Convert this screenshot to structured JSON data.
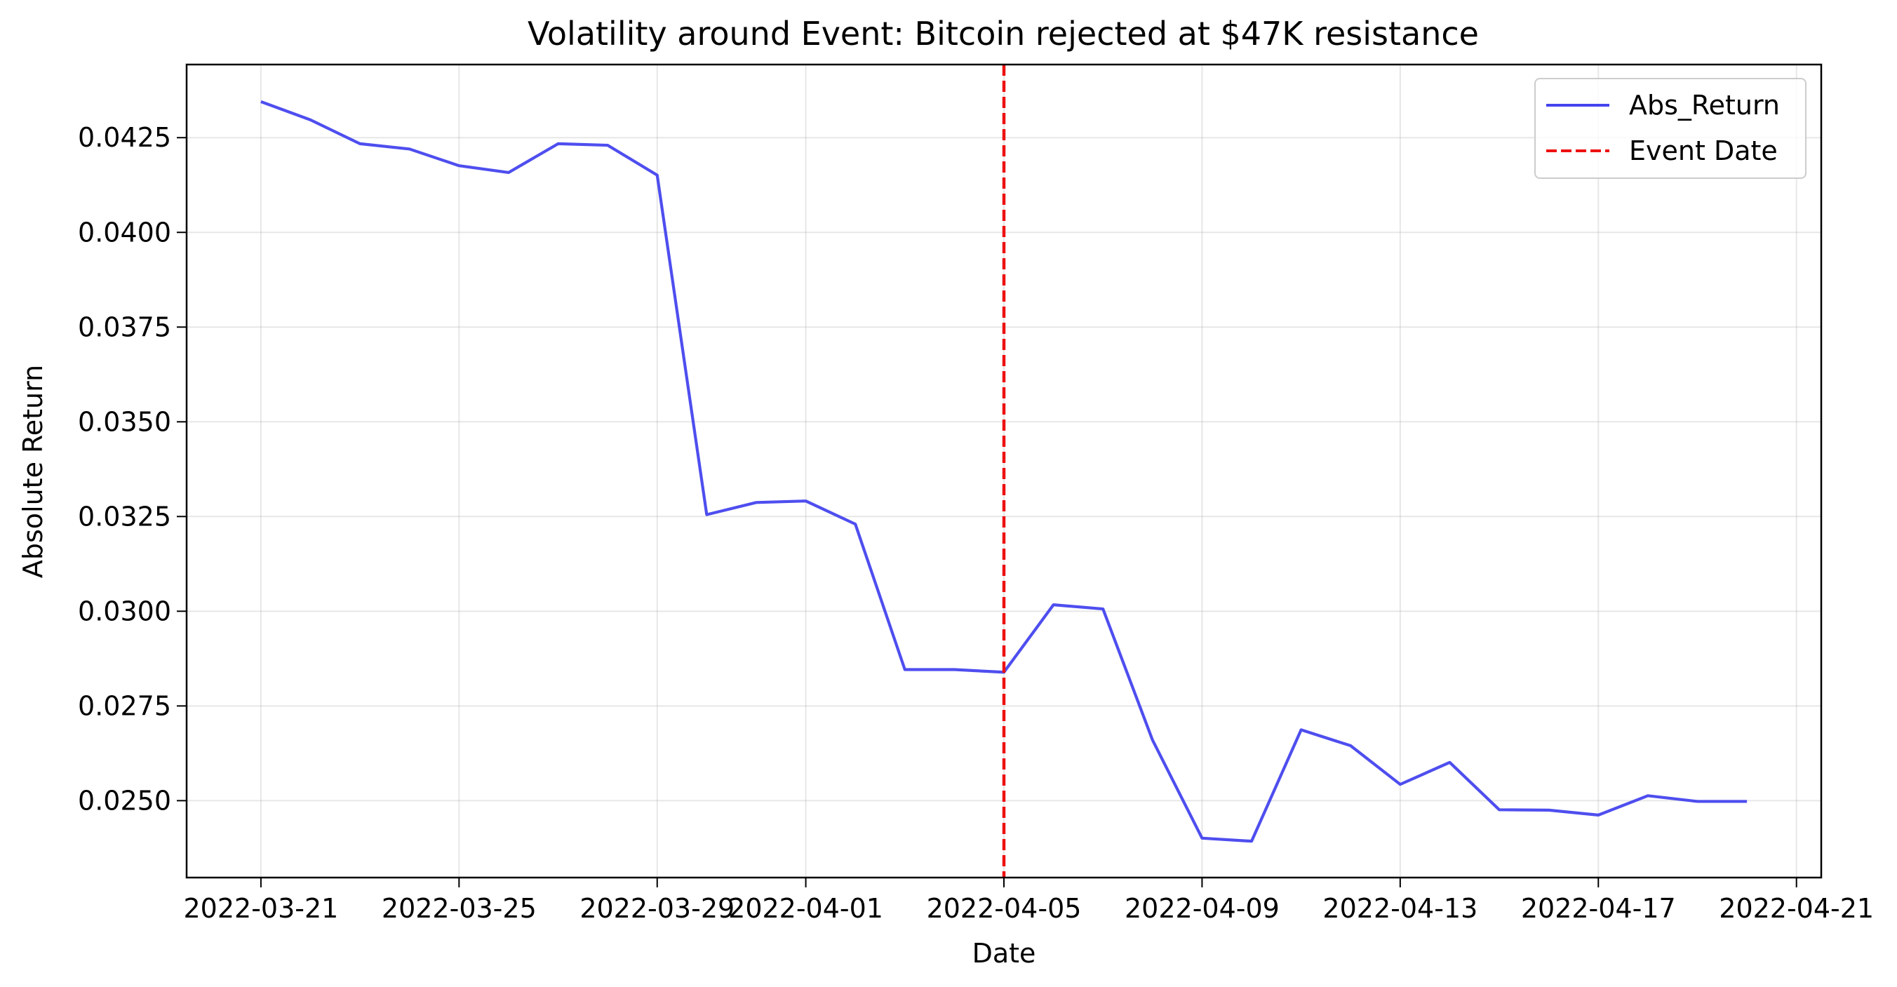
{
  "chart_data": {
    "type": "line",
    "title": "Volatility around Event: Bitcoin rejected at $47K resistance",
    "xlabel": "Date",
    "ylabel": "Absolute Return",
    "xlim": [
      "2022-03-19 12:00",
      "2022-04-21 12:00"
    ],
    "ylim": [
      0.02297,
      0.04443
    ],
    "x_ticks": [
      "2022-03-21",
      "2022-03-25",
      "2022-03-29",
      "2022-04-01",
      "2022-04-05",
      "2022-04-09",
      "2022-04-13",
      "2022-04-17",
      "2022-04-21"
    ],
    "y_ticks": [
      "0.0250",
      "0.0275",
      "0.0300",
      "0.0325",
      "0.0350",
      "0.0375",
      "0.0400",
      "0.0425"
    ],
    "grid": true,
    "legend_position": "upper right",
    "series": [
      {
        "name": "Abs_Return",
        "color": "#4444ee",
        "style": "solid",
        "x": [
          "2022-03-21",
          "2022-03-22",
          "2022-03-23",
          "2022-03-24",
          "2022-03-25",
          "2022-03-26",
          "2022-03-27",
          "2022-03-28",
          "2022-03-29",
          "2022-03-30",
          "2022-03-31",
          "2022-04-01",
          "2022-04-02",
          "2022-04-03",
          "2022-04-04",
          "2022-04-05",
          "2022-04-06",
          "2022-04-07",
          "2022-04-08",
          "2022-04-09",
          "2022-04-10",
          "2022-04-11",
          "2022-04-12",
          "2022-04-13",
          "2022-04-14",
          "2022-04-15",
          "2022-04-16",
          "2022-04-17",
          "2022-04-18",
          "2022-04-19",
          "2022-04-20"
        ],
        "values": [
          0.04345,
          0.04297,
          0.04234,
          0.0422,
          0.04176,
          0.04158,
          0.04234,
          0.0423,
          0.04151,
          0.03255,
          0.03287,
          0.03291,
          0.0323,
          0.02846,
          0.02846,
          0.02839,
          0.03017,
          0.03006,
          0.0266,
          0.02401,
          0.02393,
          0.02687,
          0.02645,
          0.02543,
          0.02601,
          0.02476,
          0.02475,
          0.02462,
          0.02513,
          0.02498,
          0.02498
        ]
      }
    ],
    "event": {
      "name": "Event Date",
      "date": "2022-04-05",
      "color": "#ee1111",
      "style": "dashed"
    }
  }
}
